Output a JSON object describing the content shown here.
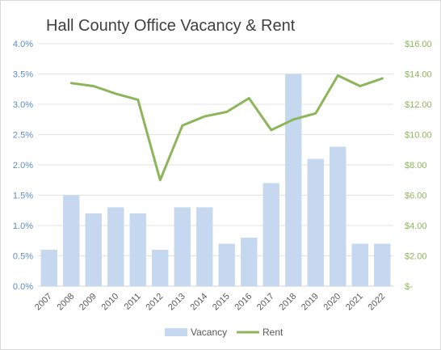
{
  "chart_data": {
    "type": "bar+line",
    "title": "Hall County Office Vacancy & Rent",
    "categories": [
      "2007",
      "2008",
      "2009",
      "2010",
      "2011",
      "2012",
      "2013",
      "2014",
      "2015",
      "2016",
      "2017",
      "2018",
      "2019",
      "2020",
      "2021",
      "2022"
    ],
    "series": [
      {
        "name": "Vacancy",
        "type": "bar",
        "axis": "left",
        "color": "#c6d8f0",
        "values": [
          0.6,
          1.5,
          1.2,
          1.3,
          1.2,
          0.6,
          1.3,
          1.3,
          0.7,
          0.8,
          1.7,
          3.5,
          2.1,
          2.3,
          0.7,
          0.7
        ]
      },
      {
        "name": "Rent",
        "type": "line",
        "axis": "right",
        "color": "#8db55a",
        "values": [
          null,
          13.4,
          13.2,
          12.7,
          12.3,
          7.0,
          10.6,
          11.2,
          11.5,
          12.4,
          10.3,
          11.0,
          11.4,
          13.9,
          13.2,
          13.7
        ]
      }
    ],
    "y_left": {
      "min": 0,
      "max": 4,
      "step": 0.5,
      "tick_labels": [
        "0.0%",
        "0.5%",
        "1.0%",
        "1.5%",
        "2.0%",
        "2.5%",
        "3.0%",
        "3.5%",
        "4.0%"
      ],
      "label_color": "#5b8cc8"
    },
    "y_right": {
      "min": 0,
      "max": 16,
      "step": 2,
      "tick_labels": [
        "$-",
        "$2.00",
        "$4.00",
        "$6.00",
        "$8.00",
        "$10.00",
        "$12.00",
        "$14.00",
        "$16.00"
      ],
      "label_color": "#8db55a"
    },
    "grid": true,
    "legend": {
      "position": "bottom",
      "items": [
        "Vacancy",
        "Rent"
      ]
    }
  }
}
